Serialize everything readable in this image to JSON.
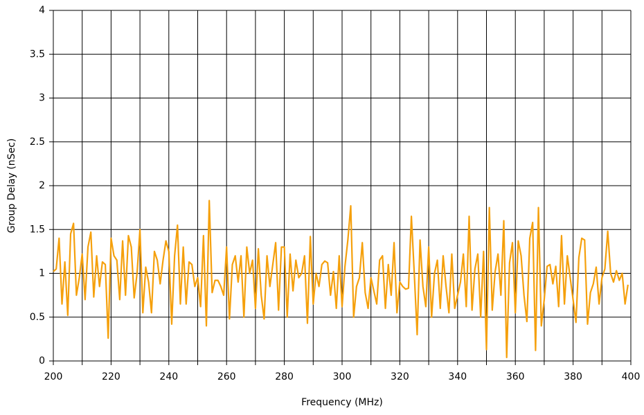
{
  "chart_data": {
    "type": "line",
    "xlabel": "Frequency (MHz)",
    "ylabel": "Group Delay (nSec)",
    "x": [
      200,
      201,
      202,
      203,
      204,
      205,
      206,
      207,
      208,
      209,
      210,
      211,
      212,
      213,
      214,
      215,
      216,
      217,
      218,
      219,
      220,
      221,
      222,
      223,
      224,
      225,
      226,
      227,
      228,
      229,
      230,
      231,
      232,
      233,
      234,
      235,
      236,
      237,
      238,
      239,
      240,
      241,
      242,
      243,
      244,
      245,
      246,
      247,
      248,
      249,
      250,
      251,
      252,
      253,
      254,
      255,
      256,
      257,
      258,
      259,
      260,
      261,
      262,
      263,
      264,
      265,
      266,
      267,
      268,
      269,
      270,
      271,
      272,
      273,
      274,
      275,
      276,
      277,
      278,
      279,
      280,
      281,
      282,
      283,
      284,
      285,
      286,
      287,
      288,
      289,
      290,
      291,
      292,
      293,
      294,
      295,
      296,
      297,
      298,
      299,
      300,
      301,
      302,
      303,
      304,
      305,
      306,
      307,
      308,
      309,
      310,
      311,
      312,
      313,
      314,
      315,
      316,
      317,
      318,
      319,
      320,
      321,
      322,
      323,
      324,
      325,
      326,
      327,
      328,
      329,
      330,
      331,
      332,
      333,
      334,
      335,
      336,
      337,
      338,
      339,
      340,
      341,
      342,
      343,
      344,
      345,
      346,
      347,
      348,
      349,
      350,
      351,
      352,
      353,
      354,
      355,
      356,
      357,
      358,
      359,
      360,
      361,
      362,
      363,
      364,
      365,
      366,
      367,
      368,
      369,
      370,
      371,
      372,
      373,
      374,
      375,
      376,
      377,
      378,
      379,
      380,
      381,
      382,
      383,
      384,
      385,
      386,
      387,
      388,
      389,
      390,
      391,
      392,
      393,
      394,
      395,
      396,
      397,
      398,
      399
    ],
    "series": [
      {
        "color": "#f5a00c",
        "values": [
          1.02,
          1.05,
          1.4,
          0.65,
          1.13,
          0.52,
          1.45,
          1.57,
          0.75,
          0.95,
          1.22,
          0.7,
          1.3,
          1.47,
          0.73,
          1.2,
          0.85,
          1.13,
          1.1,
          0.26,
          1.4,
          1.2,
          1.15,
          0.7,
          1.37,
          0.75,
          1.43,
          1.3,
          0.72,
          1.0,
          1.5,
          0.55,
          1.07,
          0.9,
          0.55,
          1.25,
          1.15,
          0.88,
          1.15,
          1.37,
          1.25,
          0.42,
          1.2,
          1.55,
          0.65,
          1.3,
          0.65,
          1.13,
          1.1,
          0.85,
          0.95,
          0.62,
          1.43,
          0.4,
          1.83,
          0.78,
          0.92,
          0.92,
          0.85,
          0.75,
          1.3,
          0.48,
          1.1,
          1.2,
          0.9,
          1.2,
          0.5,
          1.3,
          1.0,
          1.15,
          0.6,
          1.28,
          0.75,
          0.48,
          1.2,
          0.85,
          1.1,
          1.35,
          0.58,
          1.3,
          1.3,
          0.5,
          1.22,
          0.8,
          1.15,
          0.95,
          1.0,
          1.2,
          0.43,
          1.42,
          0.65,
          1.0,
          0.85,
          1.1,
          1.14,
          1.12,
          0.75,
          1.02,
          0.6,
          1.2,
          0.62,
          1.08,
          1.38,
          1.77,
          0.5,
          0.85,
          0.95,
          1.35,
          0.78,
          0.6,
          0.95,
          0.8,
          0.65,
          1.15,
          1.2,
          0.6,
          1.1,
          0.75,
          1.35,
          0.55,
          0.9,
          0.85,
          0.82,
          0.83,
          1.65,
          1.0,
          0.3,
          1.38,
          0.85,
          0.62,
          1.3,
          0.5,
          1.0,
          1.15,
          0.6,
          1.2,
          0.85,
          0.55,
          1.22,
          0.6,
          0.75,
          0.9,
          1.22,
          0.62,
          1.65,
          0.58,
          1.05,
          1.22,
          0.5,
          1.25,
          0.13,
          1.75,
          0.58,
          1.02,
          1.22,
          0.75,
          1.6,
          0.04,
          1.12,
          1.35,
          0.55,
          1.37,
          1.2,
          0.75,
          0.45,
          1.4,
          1.58,
          0.12,
          1.75,
          0.4,
          0.7,
          1.08,
          1.1,
          0.88,
          1.08,
          0.62,
          1.43,
          0.65,
          1.2,
          0.95,
          0.7,
          0.44,
          1.18,
          1.4,
          1.38,
          0.42,
          0.78,
          0.88,
          1.07,
          0.65,
          0.95,
          1.05,
          1.48,
          1.0,
          0.9,
          1.03,
          0.92,
          1.0,
          0.65,
          0.87
        ]
      }
    ],
    "xlim": [
      200,
      400
    ],
    "xticks": [
      200,
      220,
      240,
      260,
      280,
      300,
      320,
      340,
      360,
      380,
      400
    ],
    "xminorticks": [
      210,
      230,
      250,
      270,
      290,
      310,
      330,
      350,
      370,
      390
    ],
    "ylim": [
      0,
      4
    ],
    "yticks": [
      0,
      0.5,
      1,
      1.5,
      2,
      2.5,
      3,
      3.5,
      4
    ],
    "grid": true
  }
}
